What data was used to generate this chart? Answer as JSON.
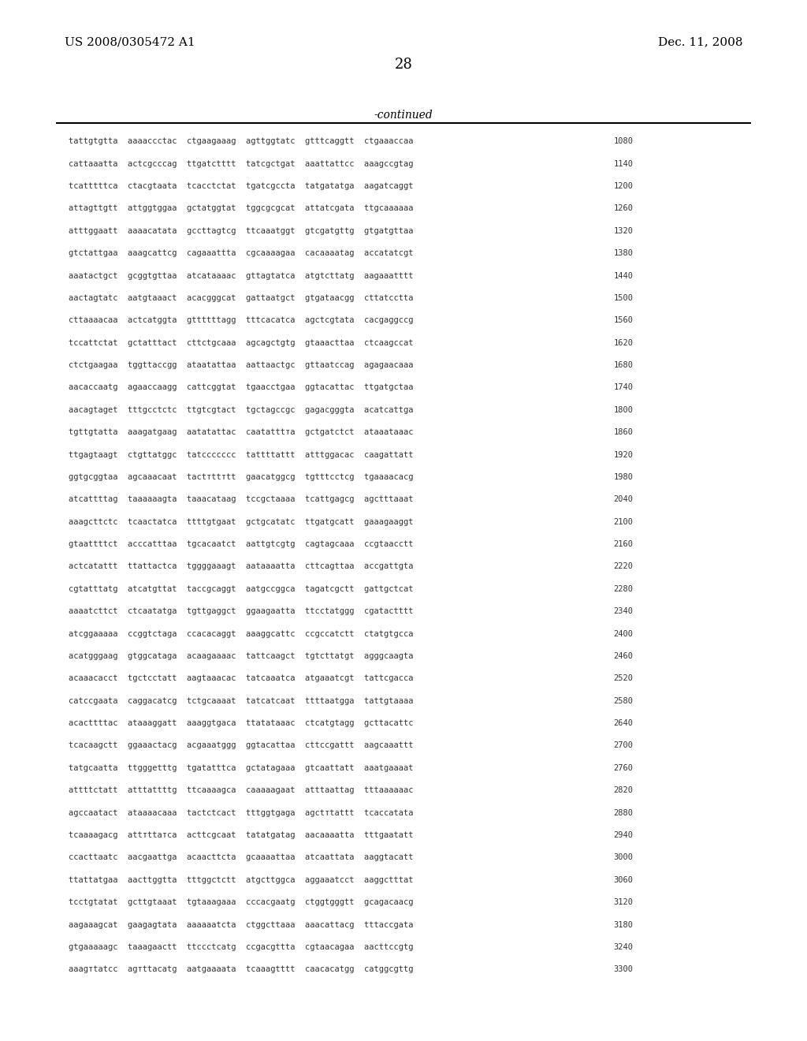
{
  "header_left": "US 2008/0305472 A1",
  "header_right": "Dec. 11, 2008",
  "page_number": "28",
  "continued_label": "-continued",
  "sequence_lines": [
    [
      "tattgtgtta",
      "aaaaccctac",
      "ctgaagaaag",
      "agttggtatc",
      "gtttcaggtt",
      "ctgaaaccaa",
      "1080"
    ],
    [
      "cattaaatta",
      "actcgcccag",
      "ttgatctttt",
      "tatcgctgat",
      "aaattattcc",
      "aaagccgtag",
      "1140"
    ],
    [
      "tcatttttca",
      "ctacgtaata",
      "tcacctctat",
      "tgatcgccta",
      "tatgatatga",
      "aagatcaggt",
      "1200"
    ],
    [
      "attagttgtt",
      "attggtggaa",
      "gctatggtat",
      "tggcgcgcat",
      "attatcgata",
      "ttgcaaaaaa",
      "1260"
    ],
    [
      "atttggaatt",
      "aaaacatata",
      "gccttagtcg",
      "ttcaaatggt",
      "gtcgatgttg",
      "gtgatgttaa",
      "1320"
    ],
    [
      "gtctattgaa",
      "aaagcattcg",
      "cagaaattta",
      "cgcaaaagaa",
      "cacaaaatag",
      "accatatcgt",
      "1380"
    ],
    [
      "aaatactgct",
      "gcggtgttaa",
      "atcataaaac",
      "gttagtatca",
      "atgtcttatg",
      "aagaaatttt",
      "1440"
    ],
    [
      "aactagtatc",
      "aatgtaaact",
      "acacgggcat",
      "gattaatgct",
      "gtgataacgg",
      "cttatcctta",
      "1500"
    ],
    [
      "cttaaaacaa",
      "actcatggta",
      "gttttttagg",
      "tttcacatca",
      "agctcgtata",
      "cacgaggccg",
      "1560"
    ],
    [
      "tccattctat",
      "gctatttact",
      "cttctgcaaa",
      "agcagctgtg",
      "gtaaacttaa",
      "ctcaagccat",
      "1620"
    ],
    [
      "ctctgaagaa",
      "tggttaccgg",
      "ataatattaa",
      "aattaactgc",
      "gttaatccag",
      "agagaacaaa",
      "1680"
    ],
    [
      "aacaccaatg",
      "agaaccaagg",
      "cattcggtat",
      "tgaacctgaa",
      "ggtacattac",
      "ttgatgctaa",
      "1740"
    ],
    [
      "aacagtaget",
      "tttgcctctc",
      "ttgtcgtact",
      "tgctagccgc",
      "gagacgggta",
      "acatcattga",
      "1800"
    ],
    [
      "tgttgtatta",
      "aaagatgaag",
      "aatatattac",
      "caatatttта",
      "gctgatctct",
      "ataaataaac",
      "1860"
    ],
    [
      "ttgagtaagt",
      "ctgttatggc",
      "tatccccccс",
      "tattttattt",
      "atttggacac",
      "caagattatt",
      "1920"
    ],
    [
      "ggtgcggtaa",
      "agcaaacaat",
      "tactтttтtt",
      "gaacatggcg",
      "tgtttcctcg",
      "tgaaaacacg",
      "1980"
    ],
    [
      "atcattttag",
      "taaaaaagta",
      "taaacataag",
      "tccgctaaaa",
      "tcattgagcg",
      "agctttaaat",
      "2040"
    ],
    [
      "aaagcttctc",
      "tcaactatca",
      "ttttgtgaat",
      "gctgcatatc",
      "ttgatgcatt",
      "gaaagaaggt",
      "2100"
    ],
    [
      "gtaattttct",
      "acccatttaa",
      "tgcacaatct",
      "aattgtcgtg",
      "cagtagcaaa",
      "ccgtaacctt",
      "2160"
    ],
    [
      "actcatattt",
      "ttattactca",
      "tggggaaagt",
      "aataaaatta",
      "cttcagttaa",
      "accgattgta",
      "2220"
    ],
    [
      "cgtatttatg",
      "atcatgttat",
      "taccgcaggt",
      "aatgccggca",
      "tagatcgctt",
      "gattgctcat",
      "2280"
    ],
    [
      "aaaatcttct",
      "ctcaatatga",
      "tgttgaggct",
      "ggaagaatta",
      "ttcctatggg",
      "cgatactttt",
      "2340"
    ],
    [
      "atcggaaaaa",
      "ccggtctaga",
      "ccacacaggt",
      "aaaggcattc",
      "ccgccatctt",
      "ctatgtgcca",
      "2400"
    ],
    [
      "acatgggaag",
      "gtggcataga",
      "acaagaaaac",
      "tattcaagct",
      "tgtcttatgt",
      "agggcaagta",
      "2460"
    ],
    [
      "acaaacacct",
      "tgctcctatt",
      "aagtaaacac",
      "tatcaaatca",
      "atgaaatcgt",
      "tattcgacca",
      "2520"
    ],
    [
      "catccgaata",
      "caggacatcg",
      "tctgcaaaat",
      "tatcatcaat",
      "ttttaatgga",
      "tattgtaaaa",
      "2580"
    ],
    [
      "acacttttac",
      "ataaaggatt",
      "aaaggtgaca",
      "ttatataaac",
      "ctcatgtagg",
      "gcttacattc",
      "2640"
    ],
    [
      "tcacaagctt",
      "ggaaactacg",
      "acgaaatggg",
      "ggtacattaa",
      "cttccgattt",
      "aagcaaattt",
      "2700"
    ],
    [
      "tatgcaatta",
      "ttgggetttg",
      "tgatatttca",
      "gctatagaaa",
      "gtcaattatt",
      "aaatgaaaat",
      "2760"
    ],
    [
      "attttctatt",
      "atttattttg",
      "ttcaaaagca",
      "caaaaagaat",
      "atttaattag",
      "tttaaaaaac",
      "2820"
    ],
    [
      "agccaatact",
      "ataaaacaaa",
      "tactctcact",
      "tttggtgaga",
      "agctтtattt",
      "tcaccatata",
      "2880"
    ],
    [
      "tcaaaagacg",
      "attтttатca",
      "acttcgcaat",
      "tatatgatag",
      "aacaaaatta",
      "tttgaatatt",
      "2940"
    ],
    [
      "ccacttaatc",
      "aacgaattga",
      "acaacttcta",
      "gcaaaattaa",
      "atcaattata",
      "aaggtacatt",
      "3000"
    ],
    [
      "ttattatgaa",
      "aacttggtta",
      "tttggctctt",
      "atgcttggca",
      "aggaaatcct",
      "aaggctttat",
      "3060"
    ],
    [
      "tcctgtatat",
      "gcttgtaaat",
      "tgtaaagaaa",
      "cccacgaatg",
      "ctggtgggtt",
      "gcagacaacg",
      "3120"
    ],
    [
      "aagaaagcat",
      "gaagagtata",
      "aaaaaatcta",
      "ctggcttaaa",
      "aaacattacg",
      "tttaccgata",
      "3180"
    ],
    [
      "gtgaaaaagc",
      "taaagaactt",
      "ttccctcatg",
      "ccgacgttta",
      "cgtaacagaa",
      "aacttccgtg",
      "3240"
    ],
    [
      "aaagтtatcc",
      "agтttacatg",
      "aatgaaaata",
      "tcaaagtttt",
      "caacacatgg",
      "catggcgttg",
      "3300"
    ]
  ]
}
